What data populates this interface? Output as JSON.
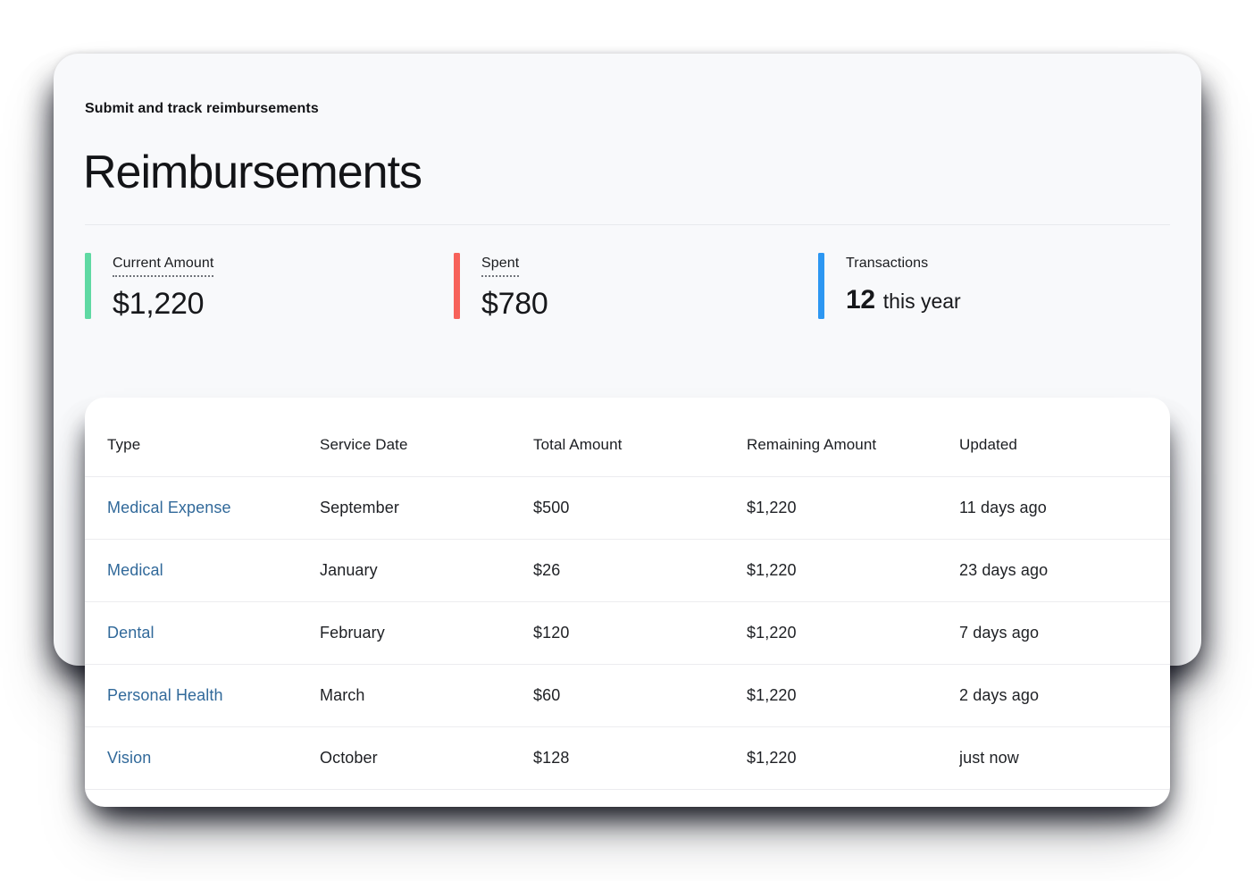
{
  "panel": {
    "subtitle": "Submit and track reimbursements",
    "title": "Reimbursements"
  },
  "stats": [
    {
      "label": "Current Amount",
      "value": "$1,220",
      "accent": "#5fd9a3"
    },
    {
      "label": "Spent",
      "value": "$780",
      "accent": "#f7625a"
    },
    {
      "label": "Transactions",
      "value": "12",
      "suffix": "this year",
      "accent": "#2d97f2"
    }
  ],
  "table": {
    "columns": [
      "Type",
      "Service Date",
      "Total Amount",
      "Remaining Amount",
      "Updated"
    ],
    "rows": [
      {
        "type": "Medical Expense",
        "service_date": "September",
        "total": "$500",
        "remaining": "$1,220",
        "updated": "11 days ago"
      },
      {
        "type": "Medical",
        "service_date": "January",
        "total": "$26",
        "remaining": "$1,220",
        "updated": "23 days ago"
      },
      {
        "type": "Dental",
        "service_date": "February",
        "total": "$120",
        "remaining": "$1,220",
        "updated": "7 days ago"
      },
      {
        "type": "Personal Health",
        "service_date": "March",
        "total": "$60",
        "remaining": "$1,220",
        "updated": "2 days ago"
      },
      {
        "type": "Vision",
        "service_date": "October",
        "total": "$128",
        "remaining": "$1,220",
        "updated": "just now"
      }
    ]
  },
  "colors": {
    "panel_background": "#f8f9fb",
    "table_background": "#ffffff",
    "link_blue": "#31699a",
    "text_dark": "#17181b",
    "divider": "#e8eaed"
  }
}
